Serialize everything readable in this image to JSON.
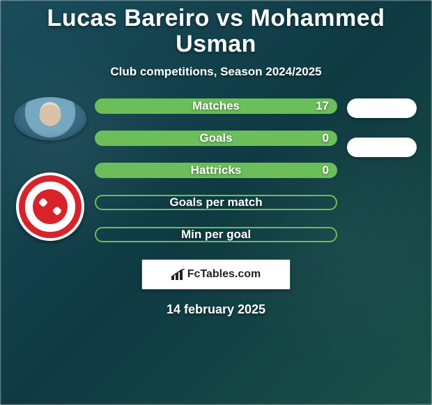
{
  "title": "Lucas Bareiro vs Mohammed Usman",
  "title_fontsize": 34,
  "subtitle": "Club competitions, Season 2024/2025",
  "subtitle_fontsize": 17,
  "date": "14 february 2025",
  "date_fontsize": 18,
  "colors": {
    "accent_green": "#6bbf59",
    "bar_outline": "#6bbf59",
    "text": "#ffffff",
    "pill_bg": "#ffffff",
    "badge_red": "#d8232a"
  },
  "stats": [
    {
      "label": "Matches",
      "left_value": "17",
      "filled": true,
      "fill_pct": 100
    },
    {
      "label": "Goals",
      "left_value": "0",
      "filled": true,
      "fill_pct": 100
    },
    {
      "label": "Hattricks",
      "left_value": "0",
      "filled": true,
      "fill_pct": 100
    },
    {
      "label": "Goals per match",
      "left_value": "",
      "filled": false,
      "fill_pct": 0
    },
    {
      "label": "Min per goal",
      "left_value": "",
      "filled": false,
      "fill_pct": 0
    }
  ],
  "label_fontsize": 17,
  "value_fontsize": 17,
  "right_pills_count": 2,
  "footer_brand": "FcTables.com",
  "footer_fontsize": 16
}
